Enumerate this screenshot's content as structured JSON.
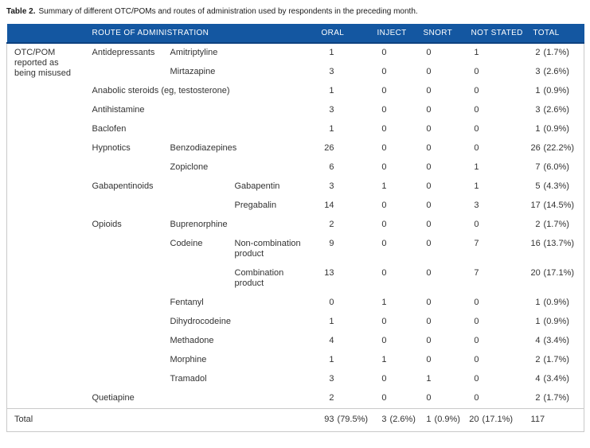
{
  "caption": {
    "label": "Table 2.",
    "text": "Summary of different OTC/POMs and routes of administration used by respondents in the preceding month."
  },
  "header": {
    "route": "ROUTE OF ADMINISTRATION",
    "oral": "ORAL",
    "inject": "INJECT",
    "snort": "SNORT",
    "not_stated": "NOT STATED",
    "total": "TOTAL"
  },
  "group_label": "OTC/POM reported as being misused",
  "rows": [
    {
      "cat": "Antidepressants",
      "drug": "Amitriptyline",
      "oral": "1",
      "inject": "0",
      "snort": "0",
      "not_stated": "1",
      "total": "2 (1.7%)"
    },
    {
      "drug": "Mirtazapine",
      "oral": "3",
      "inject": "0",
      "snort": "0",
      "not_stated": "0",
      "total": "3 (2.6%)"
    },
    {
      "cat": "Anabolic steroids (eg, testosterone)",
      "oral": "1",
      "inject": "0",
      "snort": "0",
      "not_stated": "0",
      "total": "1 (0.9%)"
    },
    {
      "cat": "Antihistamine",
      "oral": "3",
      "inject": "0",
      "snort": "0",
      "not_stated": "0",
      "total": "3 (2.6%)"
    },
    {
      "cat": "Baclofen",
      "oral": "1",
      "inject": "0",
      "snort": "0",
      "not_stated": "0",
      "total": "1 (0.9%)"
    },
    {
      "cat": "Hypnotics",
      "drug": "Benzodiazepines",
      "oral": "26",
      "inject": "0",
      "snort": "0",
      "not_stated": "0",
      "total": "26 (22.2%)"
    },
    {
      "drug": "Zopiclone",
      "oral": "6",
      "inject": "0",
      "snort": "0",
      "not_stated": "1",
      "total": "7 (6.0%)"
    },
    {
      "cat": "Gabapentinoids",
      "sub": "Gabapentin",
      "oral": "3",
      "inject": "1",
      "snort": "0",
      "not_stated": "1",
      "total": "5 (4.3%)"
    },
    {
      "sub": "Pregabalin",
      "oral": "14",
      "inject": "0",
      "snort": "0",
      "not_stated": "3",
      "total": "17 (14.5%)"
    },
    {
      "cat": "Opioids",
      "drug": "Buprenorphine",
      "oral": "2",
      "inject": "0",
      "snort": "0",
      "not_stated": "0",
      "total": "2 (1.7%)"
    },
    {
      "drug": "Codeine",
      "sub": "Non-combination product",
      "oral": "9",
      "inject": "0",
      "snort": "0",
      "not_stated": "7",
      "total": "16 (13.7%)"
    },
    {
      "sub": "Combination product",
      "oral": "13",
      "inject": "0",
      "snort": "0",
      "not_stated": "7",
      "total": "20 (17.1%)"
    },
    {
      "drug": "Fentanyl",
      "oral": "0",
      "inject": "1",
      "snort": "0",
      "not_stated": "0",
      "total": "1 (0.9%)"
    },
    {
      "drug": "Dihydrocodeine",
      "oral": "1",
      "inject": "0",
      "snort": "0",
      "not_stated": "0",
      "total": "1 (0.9%)"
    },
    {
      "drug": "Methadone",
      "oral": "4",
      "inject": "0",
      "snort": "0",
      "not_stated": "0",
      "total": "4 (3.4%)"
    },
    {
      "drug": "Morphine",
      "oral": "1",
      "inject": "1",
      "snort": "0",
      "not_stated": "0",
      "total": "2 (1.7%)"
    },
    {
      "drug": "Tramadol",
      "oral": "3",
      "inject": "0",
      "snort": "1",
      "not_stated": "0",
      "total": "4 (3.4%)"
    },
    {
      "cat": "Quetiapine",
      "oral": "2",
      "inject": "0",
      "snort": "0",
      "not_stated": "0",
      "total": "2 (1.7%)"
    }
  ],
  "total_row": {
    "label": "Total",
    "oral": "93 (79.5%)",
    "inject": "3 (2.6%)",
    "snort": "1 (0.9%)",
    "not_stated": "20 (17.1%)",
    "total": "117"
  },
  "colors": {
    "header_bg": "#1457a1",
    "header_underline": "#0e4280",
    "border": "#c9c9c9",
    "text": "#333333"
  }
}
